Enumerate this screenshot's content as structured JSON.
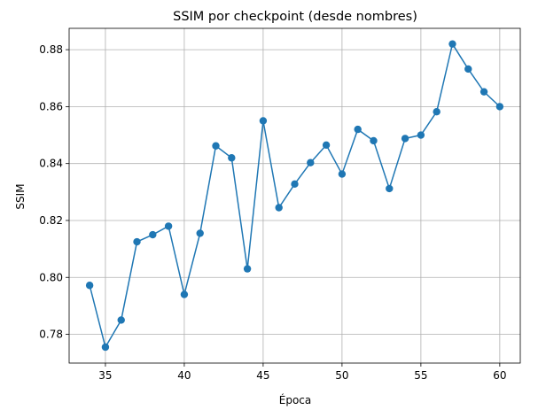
{
  "chart_data": {
    "type": "line",
    "title": "SSIM por checkpoint (desde nombres)",
    "xlabel": "Época",
    "ylabel": "SSIM",
    "xlim": [
      32.7,
      61.3
    ],
    "ylim": [
      0.7699,
      0.8875
    ],
    "xticks": [
      35,
      40,
      45,
      50,
      55,
      60
    ],
    "yticks": [
      0.78,
      0.8,
      0.82,
      0.84,
      0.86,
      0.88
    ],
    "ytick_labels": [
      "0.78",
      "0.80",
      "0.82",
      "0.84",
      "0.86",
      "0.88"
    ],
    "grid": true,
    "color": "#1f77b4",
    "marker": "circle",
    "series": [
      {
        "x": [
          34,
          35,
          36,
          37,
          38,
          39,
          40,
          41,
          42,
          43,
          44,
          45,
          46,
          47,
          48,
          49,
          50,
          51,
          52,
          53,
          54,
          55,
          56,
          57,
          58,
          59,
          60
        ],
        "y": [
          0.7972,
          0.7755,
          0.785,
          0.8125,
          0.815,
          0.818,
          0.794,
          0.8155,
          0.8462,
          0.842,
          0.803,
          0.855,
          0.8245,
          0.8328,
          0.8403,
          0.8465,
          0.8363,
          0.852,
          0.848,
          0.8312,
          0.8488,
          0.85,
          0.8582,
          0.882,
          0.8732,
          0.8652,
          0.86
        ]
      }
    ]
  }
}
